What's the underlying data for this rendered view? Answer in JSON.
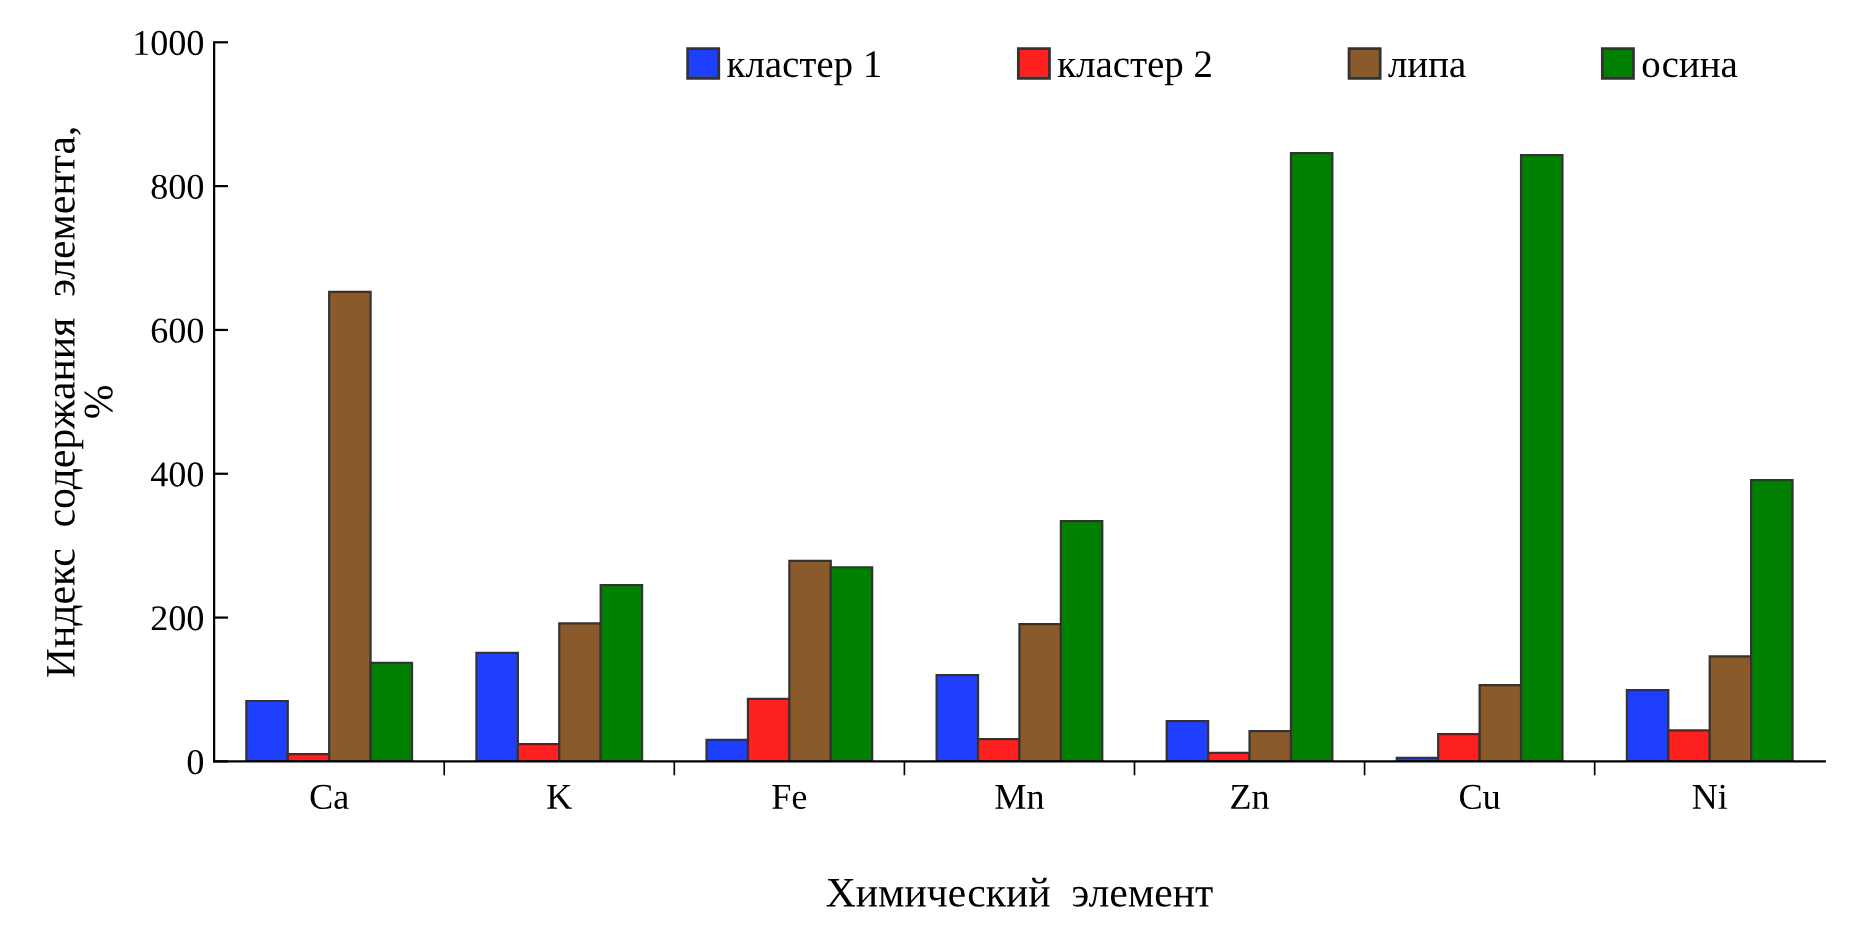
{
  "chart_data": {
    "type": "bar",
    "categories": [
      "Ca",
      "K",
      "Fe",
      "Mn",
      "Zn",
      "Cu",
      "Ni"
    ],
    "series": [
      {
        "name": "кластер 1",
        "color": "#1f3fff",
        "values": [
          84,
          151,
          30,
          120,
          56,
          5,
          99
        ]
      },
      {
        "name": "кластер 2",
        "color": "#ff2020",
        "values": [
          10,
          24,
          87,
          31,
          12,
          38,
          43
        ]
      },
      {
        "name": "липа",
        "color": "#8b5a2b",
        "values": [
          653,
          192,
          279,
          191,
          42,
          106,
          146
        ]
      },
      {
        "name": "осина",
        "color": "#008000",
        "values": [
          137,
          245,
          270,
          334,
          846,
          843,
          391
        ]
      }
    ],
    "xlabel": "Химический  элемент",
    "ylabel": "Индекс  содержания  элемента,\n%",
    "ylim": [
      0,
      1000
    ],
    "yticks": [
      0,
      200,
      400,
      600,
      800,
      1000
    ],
    "grid": false,
    "legend": "top"
  }
}
